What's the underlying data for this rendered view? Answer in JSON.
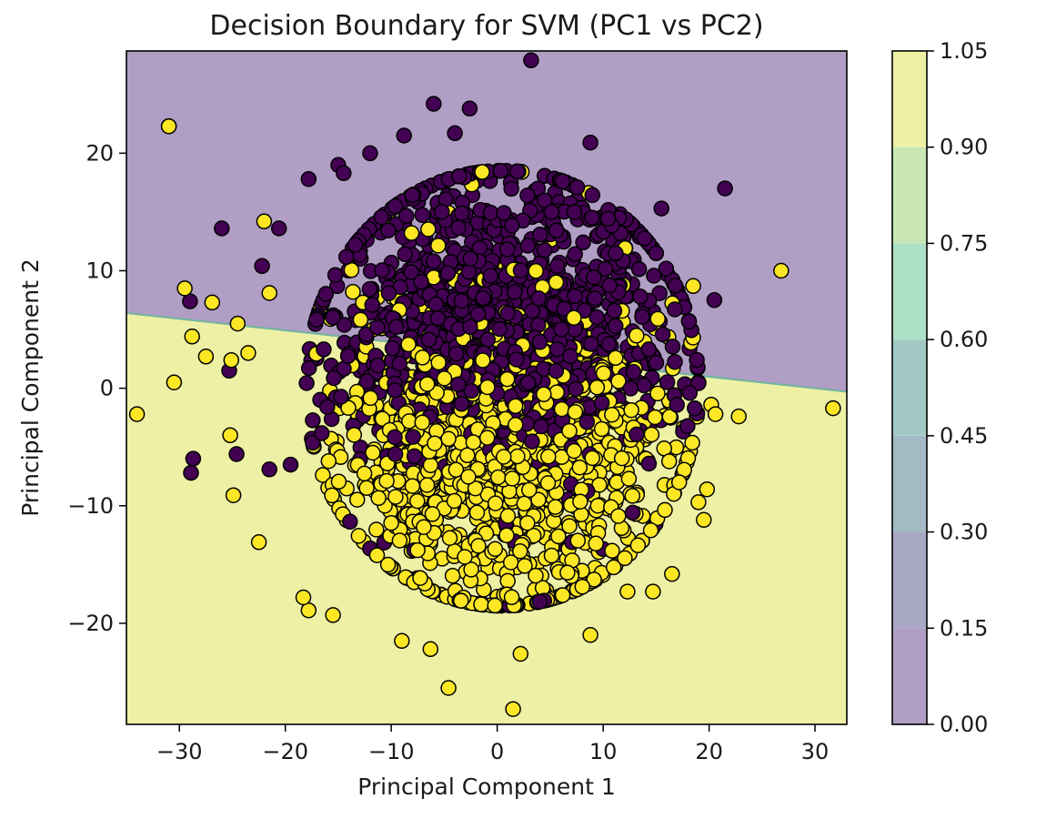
{
  "chart_data": {
    "type": "scatter",
    "title": "Decision Boundary for SVM (PC1 vs PC2)",
    "xlabel": "Principal Component 1",
    "ylabel": "Principal Component 2",
    "xlim": [
      -35,
      33
    ],
    "ylim": [
      -28.6,
      28.7
    ],
    "xticks": [
      -30,
      -20,
      -10,
      0,
      10,
      20,
      30
    ],
    "yticks": [
      -20,
      -10,
      0,
      10,
      20
    ],
    "xtick_labels": [
      "−30",
      "−20",
      "−10",
      "0",
      "10",
      "20",
      "30"
    ],
    "ytick_labels": [
      "−20",
      "−10",
      "0",
      "10",
      "20"
    ],
    "grid": false,
    "decision_boundary": {
      "points": [
        [
          -35,
          6.4
        ],
        [
          33,
          -0.3
        ]
      ],
      "region_above_class": 0,
      "region_below_class": 1
    },
    "colorbar": {
      "ticks": [
        0.0,
        0.15,
        0.3,
        0.45,
        0.6,
        0.75,
        0.9,
        1.05
      ],
      "tick_labels": [
        "0.00",
        "0.15",
        "0.30",
        "0.45",
        "0.60",
        "0.75",
        "0.90",
        "1.05"
      ],
      "level_colors": [
        "#b09ec4",
        "#a8a8c4",
        "#a3b9c4",
        "#a2c9c5",
        "#ace0c7",
        "#c8e7b5",
        "#eef0a6"
      ]
    },
    "colors": {
      "class_0": "#440154",
      "class_1": "#fde725",
      "region_class_0": "#b09ec4",
      "region_class_1": "#eef0a6",
      "boundary": "#6fb59e",
      "marker_edge": "#000000"
    },
    "series": [
      {
        "class": 0,
        "x": [
          3.2,
          -31,
          -26,
          -29,
          -22.2,
          -20.6,
          -17.8,
          -15,
          -21.5,
          -19.5,
          21.5,
          20.5,
          13.5,
          8.8,
          -6,
          -2.6,
          -8.8,
          -12,
          -28.7,
          -28.9,
          -24.6,
          -25.3,
          15.5,
          -4,
          -14.5
        ],
        "y": [
          27.9,
          22.3,
          13.6,
          7.4,
          10.4,
          13.6,
          17.8,
          19.0,
          -6.9,
          -6.5,
          17.0,
          7.5,
          7.8,
          20.9,
          24.2,
          23.8,
          21.5,
          20.0,
          -6.0,
          -7.2,
          -5.6,
          1.5,
          15.3,
          21.7,
          18.3
        ]
      },
      {
        "class": 1,
        "x": [
          -31,
          26.8,
          31.7,
          -34,
          -29.5,
          -30.5,
          -28.8,
          -24.9,
          -22,
          -21.5,
          -22.5,
          22.8,
          19.8,
          20.2,
          8.8,
          16.5,
          14.7,
          12.3,
          -17.8,
          -18.3,
          -15.5,
          -4.6,
          1.5,
          2.2,
          -9,
          -6.3,
          18.5,
          -27.5,
          -24.5,
          -23.5,
          -25.2,
          20.6,
          19.5,
          19.0,
          -25.1,
          -26.9
        ],
        "y": [
          22.3,
          10.0,
          -1.7,
          -2.2,
          8.5,
          0.5,
          4.4,
          -9.1,
          14.2,
          8.1,
          -13.1,
          -2.4,
          -8.6,
          -1.4,
          -21.0,
          -15.8,
          -17.3,
          -17.3,
          -18.9,
          -17.8,
          -19.3,
          -25.5,
          -27.3,
          -22.6,
          -21.5,
          -22.2,
          8.7,
          2.7,
          5.5,
          3.0,
          -4.0,
          -2.2,
          -11.2,
          -9.7,
          2.4,
          7.3
        ]
      }
    ],
    "cloud": {
      "description_of_bulk": "dense roughly circular point cloud of both classes",
      "center": [
        0.5,
        0
      ],
      "radius": 18.5
    }
  }
}
